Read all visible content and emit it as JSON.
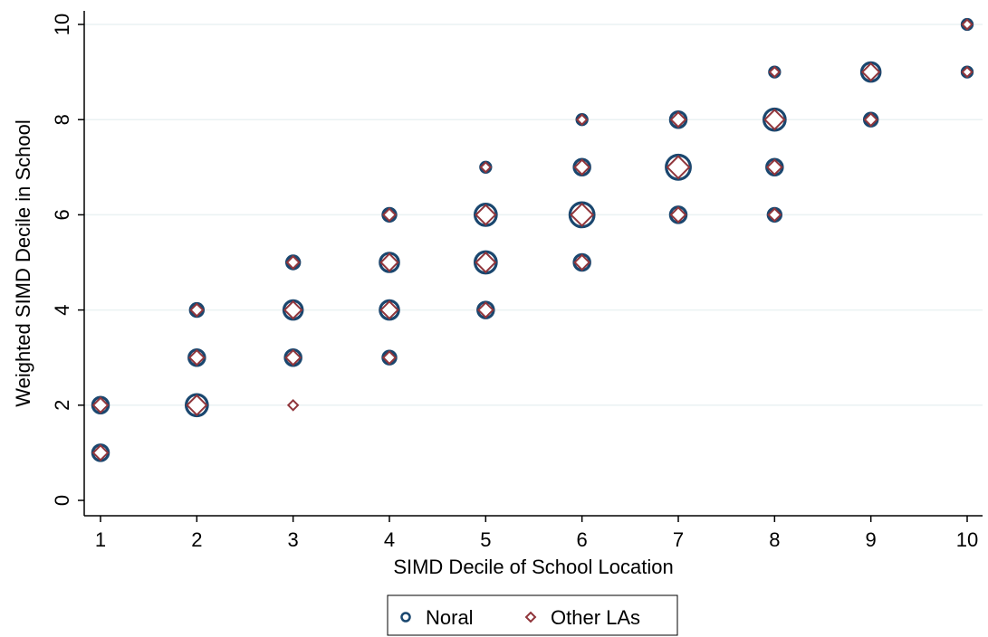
{
  "chart_data": {
    "type": "scatter",
    "xlabel": "SIMD Decile of School Location",
    "ylabel": "Weighted SIMD Decile in School",
    "xlim": [
      1,
      10
    ],
    "ylim": [
      0,
      10
    ],
    "x_ticks": [
      1,
      2,
      3,
      4,
      5,
      6,
      7,
      8,
      9,
      10
    ],
    "y_ticks": [
      0,
      2,
      4,
      6,
      8,
      10
    ],
    "grid": true,
    "legend_position": "bottom",
    "colors": {
      "noral": "#1a476f",
      "other": "#90353b",
      "grid": "#eaf2f3"
    },
    "series": [
      {
        "name": "Noral",
        "marker": "circle",
        "points": [
          {
            "x": 1,
            "y": 1,
            "w": 3
          },
          {
            "x": 1,
            "y": 2,
            "w": 3
          },
          {
            "x": 2,
            "y": 2,
            "w": 5
          },
          {
            "x": 2,
            "y": 3,
            "w": 3
          },
          {
            "x": 2,
            "y": 4,
            "w": 2
          },
          {
            "x": 3,
            "y": 2,
            "w": 0
          },
          {
            "x": 3,
            "y": 3,
            "w": 3
          },
          {
            "x": 3,
            "y": 4,
            "w": 4
          },
          {
            "x": 3,
            "y": 5,
            "w": 2
          },
          {
            "x": 4,
            "y": 3,
            "w": 2
          },
          {
            "x": 4,
            "y": 4,
            "w": 4
          },
          {
            "x": 4,
            "y": 5,
            "w": 4
          },
          {
            "x": 4,
            "y": 6,
            "w": 2
          },
          {
            "x": 5,
            "y": 4,
            "w": 3
          },
          {
            "x": 5,
            "y": 5,
            "w": 5
          },
          {
            "x": 5,
            "y": 6,
            "w": 5
          },
          {
            "x": 5,
            "y": 7,
            "w": 1
          },
          {
            "x": 6,
            "y": 5,
            "w": 3
          },
          {
            "x": 6,
            "y": 6,
            "w": 6
          },
          {
            "x": 6,
            "y": 7,
            "w": 3
          },
          {
            "x": 6,
            "y": 8,
            "w": 1
          },
          {
            "x": 7,
            "y": 6,
            "w": 3
          },
          {
            "x": 7,
            "y": 7,
            "w": 6
          },
          {
            "x": 7,
            "y": 8,
            "w": 3
          },
          {
            "x": 8,
            "y": 6,
            "w": 2
          },
          {
            "x": 8,
            "y": 7,
            "w": 3
          },
          {
            "x": 8,
            "y": 8,
            "w": 5
          },
          {
            "x": 8,
            "y": 9,
            "w": 1
          },
          {
            "x": 9,
            "y": 8,
            "w": 2
          },
          {
            "x": 9,
            "y": 9,
            "w": 4
          },
          {
            "x": 10,
            "y": 9,
            "w": 1
          },
          {
            "x": 10,
            "y": 10,
            "w": 1
          }
        ]
      },
      {
        "name": "Other LAs",
        "marker": "diamond",
        "points": [
          {
            "x": 1,
            "y": 1,
            "w": 3
          },
          {
            "x": 1,
            "y": 2,
            "w": 3
          },
          {
            "x": 2,
            "y": 2,
            "w": 5
          },
          {
            "x": 2,
            "y": 3,
            "w": 3
          },
          {
            "x": 2,
            "y": 4,
            "w": 2
          },
          {
            "x": 3,
            "y": 2,
            "w": 1
          },
          {
            "x": 3,
            "y": 3,
            "w": 3
          },
          {
            "x": 3,
            "y": 4,
            "w": 4
          },
          {
            "x": 3,
            "y": 5,
            "w": 2
          },
          {
            "x": 4,
            "y": 3,
            "w": 2
          },
          {
            "x": 4,
            "y": 4,
            "w": 4
          },
          {
            "x": 4,
            "y": 5,
            "w": 4
          },
          {
            "x": 4,
            "y": 6,
            "w": 2
          },
          {
            "x": 5,
            "y": 4,
            "w": 3
          },
          {
            "x": 5,
            "y": 5,
            "w": 5
          },
          {
            "x": 5,
            "y": 6,
            "w": 5
          },
          {
            "x": 5,
            "y": 7,
            "w": 1
          },
          {
            "x": 6,
            "y": 5,
            "w": 3
          },
          {
            "x": 6,
            "y": 6,
            "w": 6
          },
          {
            "x": 6,
            "y": 7,
            "w": 3
          },
          {
            "x": 6,
            "y": 8,
            "w": 1
          },
          {
            "x": 7,
            "y": 6,
            "w": 3
          },
          {
            "x": 7,
            "y": 7,
            "w": 6
          },
          {
            "x": 7,
            "y": 8,
            "w": 3
          },
          {
            "x": 8,
            "y": 6,
            "w": 2
          },
          {
            "x": 8,
            "y": 7,
            "w": 3
          },
          {
            "x": 8,
            "y": 8,
            "w": 5
          },
          {
            "x": 8,
            "y": 9,
            "w": 1
          },
          {
            "x": 9,
            "y": 8,
            "w": 2
          },
          {
            "x": 9,
            "y": 9,
            "w": 4
          },
          {
            "x": 10,
            "y": 9,
            "w": 1
          },
          {
            "x": 10,
            "y": 10,
            "w": 1
          }
        ]
      }
    ]
  }
}
